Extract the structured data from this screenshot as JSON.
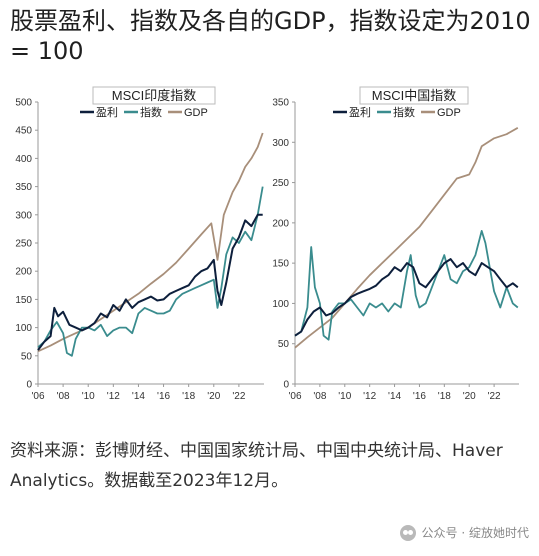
{
  "title": "股票盈利、指数及各自的GDP，指数设定为2010 = 100",
  "source": "资料来源：彭博财经、中国国家统计局、中国中央统计局、Haver Analytics。数据截至2023年12月。",
  "footer": {
    "brand": "公众号 · 绽放她时代"
  },
  "colors": {
    "earnings": "#0d1f3c",
    "index": "#3a8c8e",
    "gdp": "#a88f7a",
    "axis": "#999999"
  },
  "chart_data": [
    {
      "type": "line",
      "title": "MSCI印度指数",
      "ylim": [
        0,
        500
      ],
      "yticks": [
        0,
        50,
        100,
        150,
        200,
        250,
        300,
        350,
        400,
        450,
        500
      ],
      "xlim": [
        2006,
        2024
      ],
      "xticks": [
        "'06",
        "'08",
        "'10",
        "'12",
        "'14",
        "'16",
        "'18",
        "'20",
        "'22"
      ],
      "xtick_values": [
        2006,
        2008,
        2010,
        2012,
        2014,
        2016,
        2018,
        2020,
        2022
      ],
      "series": [
        {
          "name": "盈利",
          "key": "earnings",
          "x": [
            2006.0,
            2006.5,
            2007.0,
            2007.3,
            2007.6,
            2008.0,
            2008.5,
            2009.0,
            2009.5,
            2010.0,
            2010.5,
            2011.0,
            2011.5,
            2012.0,
            2012.5,
            2013.0,
            2013.5,
            2014.0,
            2014.5,
            2015.0,
            2015.5,
            2016.0,
            2016.5,
            2017.0,
            2017.5,
            2018.0,
            2018.5,
            2019.0,
            2019.5,
            2020.0,
            2020.3,
            2020.6,
            2021.0,
            2021.5,
            2022.0,
            2022.5,
            2023.0,
            2023.5,
            2023.9
          ],
          "y": [
            60,
            75,
            85,
            135,
            120,
            128,
            105,
            100,
            95,
            100,
            108,
            125,
            118,
            140,
            130,
            150,
            135,
            145,
            150,
            155,
            148,
            150,
            160,
            165,
            170,
            175,
            190,
            200,
            205,
            220,
            165,
            140,
            180,
            240,
            260,
            290,
            280,
            300,
            300
          ]
        },
        {
          "name": "指数",
          "key": "index",
          "x": [
            2006.0,
            2006.5,
            2007.0,
            2007.5,
            2008.0,
            2008.3,
            2008.7,
            2009.0,
            2009.5,
            2010.0,
            2010.5,
            2011.0,
            2011.5,
            2012.0,
            2012.5,
            2013.0,
            2013.5,
            2014.0,
            2014.5,
            2015.0,
            2015.5,
            2016.0,
            2016.5,
            2017.0,
            2017.5,
            2018.0,
            2018.5,
            2019.0,
            2019.5,
            2020.0,
            2020.3,
            2020.6,
            2021.0,
            2021.5,
            2022.0,
            2022.5,
            2023.0,
            2023.5,
            2023.9
          ],
          "y": [
            65,
            75,
            95,
            110,
            90,
            55,
            50,
            80,
            100,
            100,
            95,
            105,
            85,
            95,
            100,
            100,
            90,
            125,
            135,
            130,
            125,
            125,
            130,
            150,
            160,
            165,
            170,
            175,
            180,
            185,
            135,
            170,
            230,
            260,
            250,
            270,
            255,
            300,
            350
          ]
        },
        {
          "name": "GDP",
          "key": "gdp",
          "x": [
            2006,
            2007,
            2008,
            2009,
            2010,
            2011,
            2012,
            2013,
            2014,
            2015,
            2016,
            2017,
            2018,
            2019,
            2019.8,
            2020.3,
            2020.8,
            2021.5,
            2022,
            2022.5,
            2023,
            2023.5,
            2023.9
          ],
          "y": [
            58,
            68,
            80,
            90,
            100,
            115,
            130,
            145,
            160,
            178,
            195,
            215,
            240,
            265,
            285,
            220,
            300,
            340,
            360,
            385,
            400,
            420,
            445
          ]
        }
      ]
    },
    {
      "type": "line",
      "title": "MSCI中国指数",
      "ylim": [
        0,
        350
      ],
      "yticks": [
        0,
        50,
        100,
        150,
        200,
        250,
        300,
        350
      ],
      "xlim": [
        2006,
        2024
      ],
      "xticks": [
        "'06",
        "'08",
        "'10",
        "'12",
        "'14",
        "'16",
        "'18",
        "'20",
        "'22"
      ],
      "xtick_values": [
        2006,
        2008,
        2010,
        2012,
        2014,
        2016,
        2018,
        2020,
        2022
      ],
      "series": [
        {
          "name": "盈利",
          "key": "earnings",
          "x": [
            2006.0,
            2006.5,
            2007.0,
            2007.5,
            2008.0,
            2008.5,
            2009.0,
            2009.5,
            2010.0,
            2010.5,
            2011.0,
            2011.5,
            2012.0,
            2012.5,
            2013.0,
            2013.5,
            2014.0,
            2014.5,
            2015.0,
            2015.5,
            2016.0,
            2016.5,
            2017.0,
            2017.5,
            2018.0,
            2018.5,
            2019.0,
            2019.5,
            2020.0,
            2020.5,
            2021.0,
            2021.5,
            2022.0,
            2022.5,
            2023.0,
            2023.5,
            2023.9
          ],
          "y": [
            60,
            65,
            80,
            90,
            95,
            85,
            88,
            95,
            100,
            108,
            112,
            115,
            118,
            122,
            130,
            135,
            145,
            140,
            150,
            145,
            125,
            120,
            130,
            140,
            150,
            155,
            145,
            150,
            140,
            135,
            150,
            145,
            140,
            130,
            120,
            125,
            120
          ]
        },
        {
          "name": "指数",
          "key": "index",
          "x": [
            2006.0,
            2006.5,
            2007.0,
            2007.3,
            2007.6,
            2008.0,
            2008.3,
            2008.7,
            2009.0,
            2009.5,
            2010.0,
            2010.5,
            2011.0,
            2011.5,
            2012.0,
            2012.5,
            2013.0,
            2013.5,
            2014.0,
            2014.5,
            2015.0,
            2015.3,
            2015.7,
            2016.0,
            2016.5,
            2017.0,
            2017.5,
            2018.0,
            2018.5,
            2019.0,
            2019.5,
            2020.0,
            2020.5,
            2021.0,
            2021.3,
            2021.7,
            2022.0,
            2022.5,
            2023.0,
            2023.5,
            2023.9
          ],
          "y": [
            60,
            65,
            95,
            170,
            120,
            100,
            60,
            55,
            90,
            100,
            100,
            105,
            95,
            85,
            100,
            95,
            100,
            90,
            100,
            95,
            140,
            160,
            110,
            95,
            100,
            120,
            140,
            160,
            130,
            125,
            140,
            145,
            160,
            190,
            175,
            140,
            115,
            95,
            120,
            100,
            95
          ]
        },
        {
          "name": "GDP",
          "key": "gdp",
          "x": [
            2006,
            2007,
            2008,
            2009,
            2010,
            2011,
            2012,
            2013,
            2014,
            2015,
            2016,
            2017,
            2018,
            2019,
            2020,
            2020.5,
            2021,
            2022,
            2023,
            2023.9
          ],
          "y": [
            45,
            58,
            70,
            82,
            100,
            118,
            135,
            150,
            165,
            180,
            195,
            215,
            235,
            255,
            260,
            275,
            295,
            305,
            310,
            318
          ]
        }
      ]
    }
  ]
}
